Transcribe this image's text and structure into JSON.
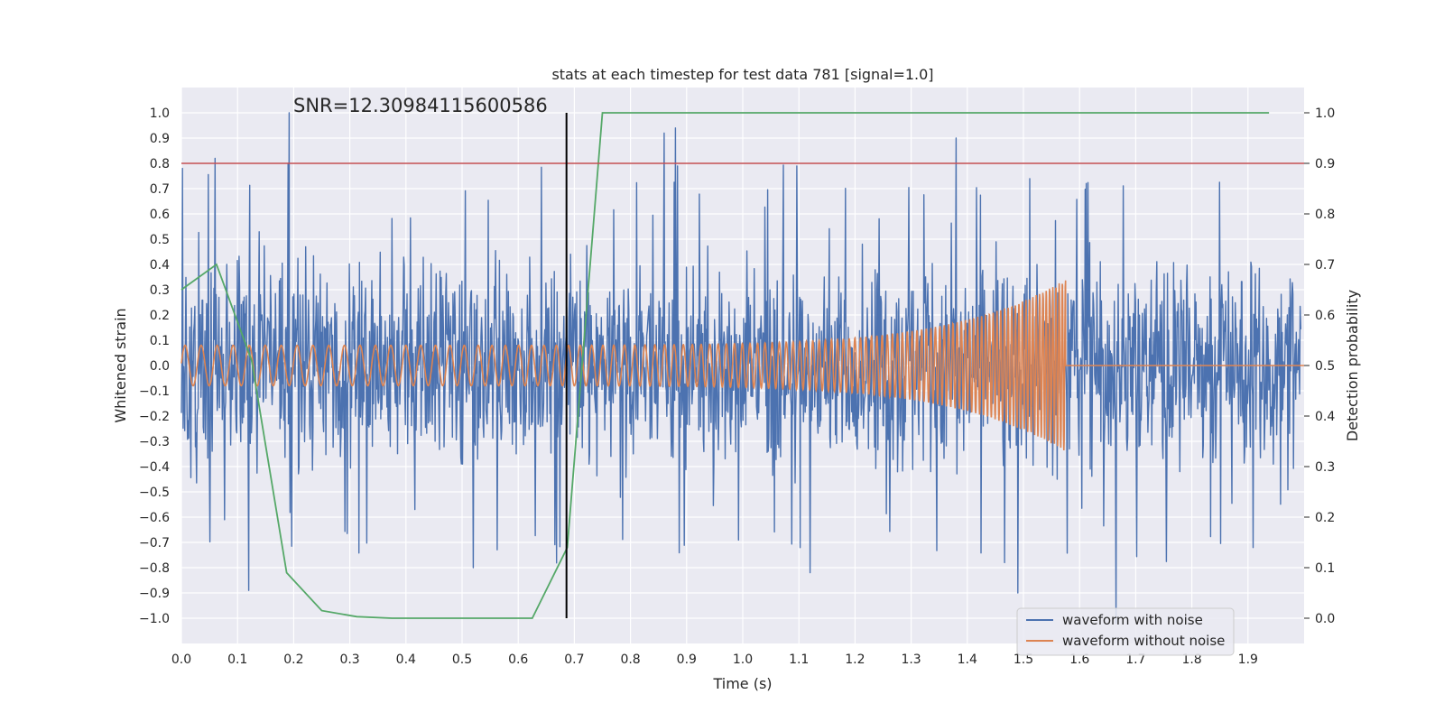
{
  "chart_data": {
    "type": "line",
    "title": "stats at each timestep for test data 781 [signal=1.0]",
    "xlabel": "Time (s)",
    "ylabel": "Whitened strain",
    "y2label": "Detection probability",
    "annotation": "SNR=12.30984115600586",
    "xlim": [
      0.0,
      2.0
    ],
    "ylim": [
      -1.1,
      1.1
    ],
    "y2lim": [
      -0.05,
      1.05
    ],
    "xticks": [
      "0.0",
      "0.1",
      "0.2",
      "0.3",
      "0.4",
      "0.5",
      "0.6",
      "0.7",
      "0.8",
      "0.9",
      "1.0",
      "1.1",
      "1.2",
      "1.3",
      "1.4",
      "1.5",
      "1.6",
      "1.7",
      "1.8",
      "1.9"
    ],
    "yticks": [
      "1.0",
      "0.9",
      "0.8",
      "0.7",
      "0.6",
      "0.5",
      "0.4",
      "0.3",
      "0.2",
      "0.1",
      "0.0",
      "−0.1",
      "−0.2",
      "−0.3",
      "−0.4",
      "−0.5",
      "−0.6",
      "−0.7",
      "−0.8",
      "−0.9",
      "−1.0"
    ],
    "y2ticks": [
      "1.0",
      "0.9",
      "0.8",
      "0.7",
      "0.6",
      "0.5",
      "0.4",
      "0.3",
      "0.2",
      "0.1",
      "0.0"
    ],
    "grid": true,
    "legend_position": "bottom-right",
    "threshold_line": {
      "axis": "y2",
      "value": 0.9,
      "color": "#c44e52"
    },
    "marker_line": {
      "x": 0.686,
      "y_from": -1.0,
      "y_to": 1.0,
      "color": "#000000"
    },
    "series": [
      {
        "name": "waveform with noise",
        "axis": "y",
        "color": "#4c72b0",
        "peaks": [
          {
            "x": 0.002,
            "y": 0.78
          },
          {
            "x": 0.06,
            "y": 0.82
          },
          {
            "x": 0.19,
            "y": 0.8
          },
          {
            "x": 0.192,
            "y": 1.0
          },
          {
            "x": 0.12,
            "y": -0.89
          },
          {
            "x": 0.52,
            "y": -0.8
          },
          {
            "x": 0.86,
            "y": 0.92
          },
          {
            "x": 0.88,
            "y": 0.94
          },
          {
            "x": 1.38,
            "y": 0.9
          },
          {
            "x": 1.49,
            "y": -0.9
          },
          {
            "x": 1.665,
            "y": -1.02
          },
          {
            "x": 1.12,
            "y": -0.82
          }
        ]
      },
      {
        "name": "waveform without noise",
        "axis": "y",
        "color": "#dd8452",
        "x_end": 1.575,
        "amplitude_start": 0.08,
        "amplitude_end": 0.34,
        "frequency_start_hz": 35,
        "frequency_end_hz": 180
      },
      {
        "name": "detection probability",
        "axis": "y2",
        "color": "#55a868",
        "x": [
          0.0,
          0.0625,
          0.125,
          0.1875,
          0.25,
          0.3125,
          0.375,
          0.4375,
          0.5,
          0.5625,
          0.625,
          0.6875,
          0.75,
          0.8125,
          1.0,
          1.25,
          1.5,
          1.75,
          1.9375
        ],
        "y": [
          0.65,
          0.7,
          0.51,
          0.09,
          0.015,
          0.003,
          0.0,
          0.0,
          0.0,
          0.0,
          0.0,
          0.14,
          1.0,
          1.0,
          1.0,
          1.0,
          1.0,
          1.0,
          1.0
        ]
      }
    ],
    "legend": [
      "waveform with noise",
      "waveform without noise"
    ]
  }
}
